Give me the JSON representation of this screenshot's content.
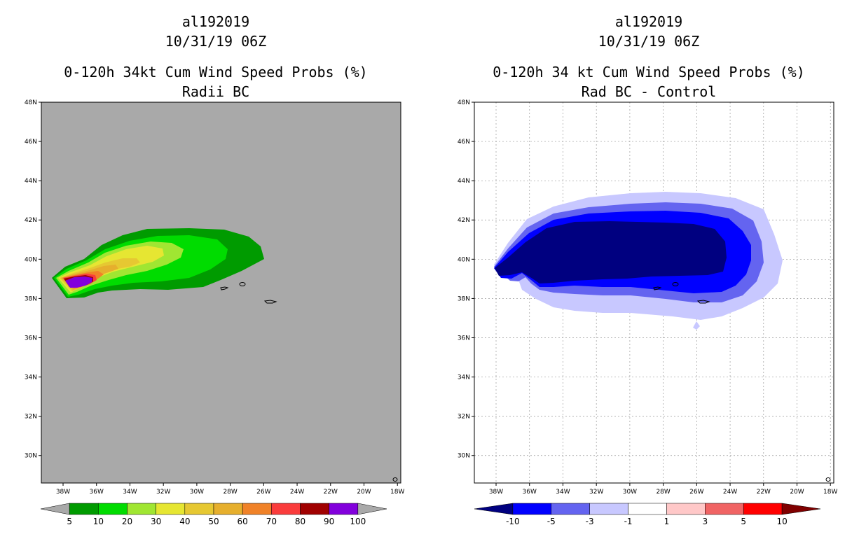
{
  "chart_data": [
    {
      "type": "filled-contour-map",
      "storm_id": "al192019",
      "datetime": "10/31/19 06Z",
      "title": "0-120h 34kt Cum Wind Speed Probs (%)",
      "subtitle": "Radii BC",
      "lat_ticks": [
        "48N",
        "46N",
        "44N",
        "42N",
        "40N",
        "38N",
        "36N",
        "34N",
        "32N",
        "30N"
      ],
      "lon_ticks": [
        "38W",
        "36W",
        "34W",
        "32W",
        "30W",
        "28W",
        "26W",
        "24W",
        "22W",
        "20W",
        "18W"
      ],
      "lon_range": [
        -39.3,
        -17.8
      ],
      "lat_range": [
        28.6,
        48.0
      ],
      "grid": false,
      "background_color": "#a9a9a9",
      "colorbar": {
        "labels": [
          "5",
          "10",
          "20",
          "30",
          "40",
          "50",
          "60",
          "70",
          "80",
          "90",
          "100"
        ],
        "colors": [
          "#009b00",
          "#00dc00",
          "#a0e632",
          "#e6e632",
          "#e6c832",
          "#e6af2d",
          "#f08228",
          "#fa3c3c",
          "#a00000",
          "#8200dc"
        ]
      }
    },
    {
      "type": "filled-contour-map",
      "storm_id": "al192019",
      "datetime": "10/31/19 06Z",
      "title": "0-120h 34 kt Cum Wind Speed Probs (%)",
      "subtitle": "Rad BC - Control",
      "lat_ticks": [
        "48N",
        "46N",
        "44N",
        "42N",
        "40N",
        "38N",
        "36N",
        "34N",
        "32N",
        "30N"
      ],
      "lon_ticks": [
        "38W",
        "36W",
        "34W",
        "32W",
        "30W",
        "28W",
        "26W",
        "24W",
        "22W",
        "20W",
        "18W"
      ],
      "lon_range": [
        -39.3,
        -17.8
      ],
      "lat_range": [
        28.6,
        48.0
      ],
      "grid": true,
      "background_color": "#ffffff",
      "colorbar": {
        "labels": [
          "-10",
          "-5",
          "-3",
          "-1",
          "1",
          "3",
          "5",
          "10"
        ],
        "colors": [
          "#000080",
          "#0000ff",
          "#6464f0",
          "#c8c8ff",
          "#ffffff",
          "#ffc8c8",
          "#f06464",
          "#ff0000",
          "#800000"
        ]
      }
    }
  ]
}
